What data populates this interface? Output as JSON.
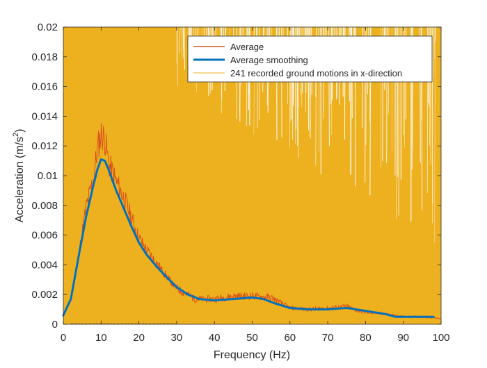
{
  "chart_data": {
    "type": "line",
    "xlabel": "Frequency (Hz)",
    "ylabel_main": "Acceleration (m/s",
    "ylabel_sup": "2",
    "ylabel_tail": ")",
    "xlim": [
      0,
      100
    ],
    "ylim": [
      0,
      0.02
    ],
    "xticks": [
      0,
      10,
      20,
      30,
      40,
      50,
      60,
      70,
      80,
      90,
      100
    ],
    "yticks": [
      0,
      0.002,
      0.004,
      0.006,
      0.008,
      0.01,
      0.012,
      0.014,
      0.016,
      0.018,
      0.02
    ],
    "ytick_labels": [
      "0",
      "0.002",
      "0.004",
      "0.006",
      "0.008",
      "0.01",
      "0.012",
      "0.014",
      "0.016",
      "0.018",
      "0.02"
    ],
    "grid": false,
    "legend_position": "top-right",
    "series": [
      {
        "name": "Average",
        "color": "#D95319",
        "x": [
          0,
          2,
          4,
          6,
          8,
          9,
          10,
          11,
          12,
          14,
          16,
          18,
          20,
          22,
          25,
          28,
          30,
          35,
          40,
          45,
          50,
          55,
          60,
          65,
          70,
          75,
          78,
          80,
          85,
          90,
          95,
          100
        ],
        "y": [
          0.0007,
          0.0016,
          0.0045,
          0.0078,
          0.0098,
          0.0118,
          0.0128,
          0.0125,
          0.0108,
          0.0096,
          0.0085,
          0.0072,
          0.0058,
          0.005,
          0.004,
          0.003,
          0.0024,
          0.0017,
          0.0017,
          0.0019,
          0.0019,
          0.0018,
          0.0011,
          0.001,
          0.0011,
          0.0012,
          0.0009,
          0.0008,
          0.0007,
          0.0005,
          0.0005,
          0.0004
        ]
      },
      {
        "name": "Average smoothing",
        "color": "#0072BD",
        "x": [
          0,
          2,
          4,
          6,
          8,
          9,
          10,
          11,
          12,
          14,
          16,
          18,
          20,
          22,
          25,
          28,
          30,
          33,
          36,
          40,
          45,
          50,
          53,
          56,
          60,
          65,
          70,
          75,
          80,
          85,
          88,
          90,
          95,
          98
        ],
        "y": [
          0.0006,
          0.0017,
          0.0045,
          0.0072,
          0.0094,
          0.0104,
          0.0111,
          0.011,
          0.0104,
          0.009,
          0.0078,
          0.0066,
          0.0055,
          0.0047,
          0.0038,
          0.003,
          0.0025,
          0.002,
          0.0017,
          0.0016,
          0.0017,
          0.0018,
          0.0017,
          0.0014,
          0.0011,
          0.001,
          0.001,
          0.0011,
          0.0009,
          0.0007,
          0.0005,
          0.0005,
          0.0005,
          0.0005
        ]
      },
      {
        "name": "241 recorded ground motions in x-direction",
        "color": "#EDB120"
      }
    ]
  }
}
